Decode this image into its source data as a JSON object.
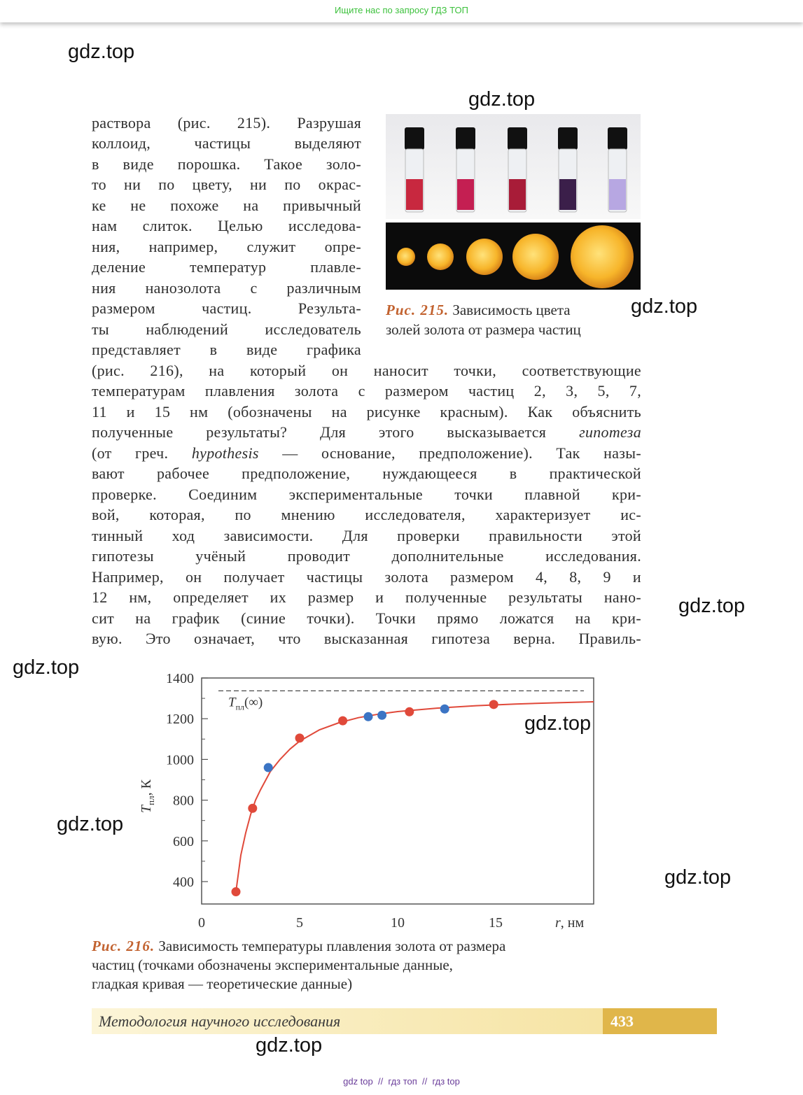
{
  "banner": "Ищите нас по запросу ГДЗ ТОП",
  "watermarks": [
    "gdz.top",
    "gdz.top",
    "gdz.top",
    "gdz.top",
    "gdz.top",
    "gdz.top",
    "gdz.top",
    "gdz.top",
    "gdz.top"
  ],
  "paragraph": {
    "lines": [
      [
        "раствора (рис. 215). Разрушая"
      ],
      [
        "коллоид, частицы выделяют"
      ],
      [
        "в виде порошка. Такое золо-"
      ],
      [
        "то ни по цвету, ни по окрас-"
      ],
      [
        "ке не похоже на привычный"
      ],
      [
        "нам слиток. Целью исследова-"
      ],
      [
        "ния, например, служит опре-"
      ],
      [
        "деление температур плавле-"
      ],
      [
        "ния нанозолота с различным"
      ],
      [
        "размером частиц. Результа-"
      ],
      [
        "ты наблюдений исследователь"
      ],
      [
        "представляет в виде графика"
      ],
      [
        "(рис. 216), на который он наносит точки, соответствующие"
      ],
      [
        "температурам плавления золота с размером частиц 2, 3, 5, 7,"
      ],
      [
        "11 и 15 нм (обозначены на рисунке красным). Как объяснить"
      ],
      [
        "полученные результаты? Для этого высказывается ",
        "гипотеза"
      ],
      [
        "(от греч. ",
        "hypothesis",
        " — основание, предположение). Так назы-"
      ],
      [
        "вают рабочее предположение, нуждающееся в практической"
      ],
      [
        "проверке. Соединим экспериментальные точки плавной кри-"
      ],
      [
        "вой, которая, по мнению исследователя, характеризует ис-"
      ],
      [
        "тинный ход зависимости. Для проверки правильности этой"
      ],
      [
        "гипотезы учёный проводит дополнительные исследования."
      ],
      [
        "Например, он получает частицы золота размером 4, 8, 9 и"
      ],
      [
        "12 нм, определяет их размер и полученные результаты нано-"
      ],
      [
        "сит на график (синие точки). Точки прямо ложатся на кри-"
      ],
      [
        "вую. Это означает, что высказанная гипотеза верна. Правиль-"
      ]
    ]
  },
  "figure_215": {
    "label": "Рис. 215.",
    "caption_lines": [
      "Зависимость цвета",
      "золей золота от размера частиц"
    ]
  },
  "figure_216": {
    "label": "Рис. 216.",
    "caption_lines": [
      "Зависимость температуры плавления золота от размера",
      "частиц (точками обозначены экспериментальные данные,",
      "гладкая кривая — теоретические данные)"
    ]
  },
  "chart_data": {
    "type": "scatter",
    "xlim": [
      0,
      20
    ],
    "ylim": [
      290,
      1400
    ],
    "xticks": [
      0,
      5,
      10,
      15
    ],
    "yticks": [
      400,
      600,
      800,
      1000,
      1200,
      1400
    ],
    "yminor": [
      500,
      700,
      900,
      1100,
      1300
    ],
    "xlabel": {
      "symbol": "r",
      "unit": ", нм"
    },
    "ylabel": {
      "symbol": "T",
      "subscript": "пл",
      "unit": ", К"
    },
    "annotation": {
      "symbol": "T",
      "subscript": "пл",
      "text": "(∞)",
      "value": 1337
    },
    "series": [
      {
        "color": "#e0493a",
        "x": [
          1.75,
          2.6,
          5,
          7.2,
          10.6,
          14.9
        ],
        "values": [
          350,
          760,
          1105,
          1190,
          1234,
          1270
        ]
      },
      {
        "color": "#3b74c4",
        "x": [
          3.4,
          8.5,
          9.2,
          12.4
        ],
        "values": [
          960,
          1210,
          1217,
          1248
        ]
      }
    ],
    "curve": {
      "color": "#e0493a",
      "x": [
        1.75,
        2,
        2.25,
        2.5,
        2.75,
        3,
        3.5,
        4,
        4.5,
        5,
        6,
        7,
        8,
        9,
        10,
        12,
        14,
        16,
        18,
        20
      ],
      "values": [
        350,
        530,
        640,
        730,
        800,
        850,
        940,
        1000,
        1050,
        1090,
        1145,
        1180,
        1205,
        1222,
        1235,
        1252,
        1264,
        1272,
        1278,
        1283
      ]
    }
  },
  "footer_bar": {
    "title": "Методология научного исследования",
    "page": "433"
  },
  "footer_links": "gdz top  //  гдз топ  //  гдз top"
}
